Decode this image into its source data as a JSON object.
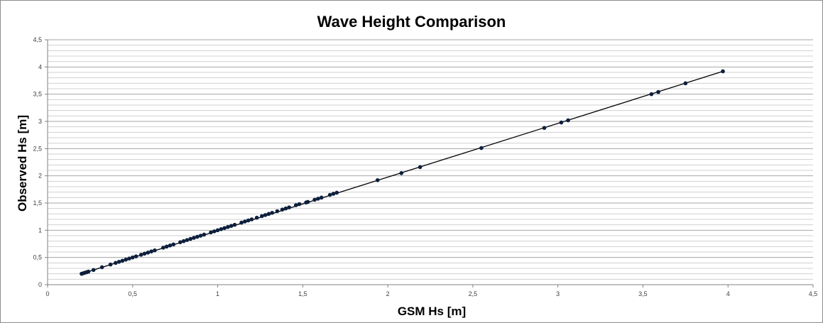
{
  "chart_data": {
    "type": "scatter",
    "title": "Wave Height Comparison",
    "xlabel": "GSM Hs [m]",
    "ylabel": "Observed Hs [m]",
    "xlim": [
      0,
      4.5
    ],
    "ylim": [
      0,
      4.5
    ],
    "x_ticks": [
      "0",
      "0,5",
      "1",
      "1,5",
      "2",
      "2,5",
      "3",
      "3,5",
      "4",
      "4,5"
    ],
    "y_ticks": [
      "0",
      "0,5",
      "1",
      "1,5",
      "2",
      "2,5",
      "3",
      "3,5",
      "4",
      "4,5"
    ],
    "grid": "horizontal",
    "marker_color": "#0d1f3c",
    "line_color": "#000000",
    "trendline": {
      "x": [
        0.2,
        3.97
      ],
      "y": [
        0.2,
        3.92
      ]
    },
    "series": [
      {
        "x": [
          0.2,
          0.21,
          0.22,
          0.23,
          0.24,
          0.27,
          0.32,
          0.37,
          0.4,
          0.42,
          0.44,
          0.46,
          0.48,
          0.5,
          0.52,
          0.55,
          0.57,
          0.59,
          0.61,
          0.63,
          0.68,
          0.7,
          0.72,
          0.74,
          0.78,
          0.8,
          0.82,
          0.84,
          0.86,
          0.88,
          0.9,
          0.92,
          0.96,
          0.98,
          1.0,
          1.02,
          1.04,
          1.06,
          1.08,
          1.1,
          1.14,
          1.16,
          1.18,
          1.2,
          1.23,
          1.26,
          1.28,
          1.3,
          1.32,
          1.35,
          1.38,
          1.4,
          1.42,
          1.46,
          1.48,
          1.52,
          1.53,
          1.57,
          1.59,
          1.61,
          1.66,
          1.68,
          1.7,
          1.94,
          2.08,
          2.19,
          2.55,
          2.92,
          3.02,
          3.06,
          3.55,
          3.59,
          3.75,
          3.97
        ],
        "y": [
          0.2,
          0.21,
          0.22,
          0.23,
          0.24,
          0.27,
          0.32,
          0.37,
          0.4,
          0.42,
          0.44,
          0.46,
          0.48,
          0.5,
          0.52,
          0.55,
          0.57,
          0.59,
          0.61,
          0.63,
          0.68,
          0.7,
          0.72,
          0.74,
          0.78,
          0.8,
          0.82,
          0.84,
          0.86,
          0.88,
          0.9,
          0.92,
          0.96,
          0.98,
          1.0,
          1.02,
          1.04,
          1.06,
          1.08,
          1.1,
          1.14,
          1.16,
          1.18,
          1.2,
          1.23,
          1.26,
          1.28,
          1.3,
          1.32,
          1.35,
          1.38,
          1.4,
          1.42,
          1.46,
          1.48,
          1.51,
          1.52,
          1.56,
          1.58,
          1.6,
          1.65,
          1.67,
          1.69,
          1.92,
          2.05,
          2.16,
          2.51,
          2.88,
          2.98,
          3.02,
          3.5,
          3.54,
          3.7,
          3.92
        ]
      }
    ]
  }
}
